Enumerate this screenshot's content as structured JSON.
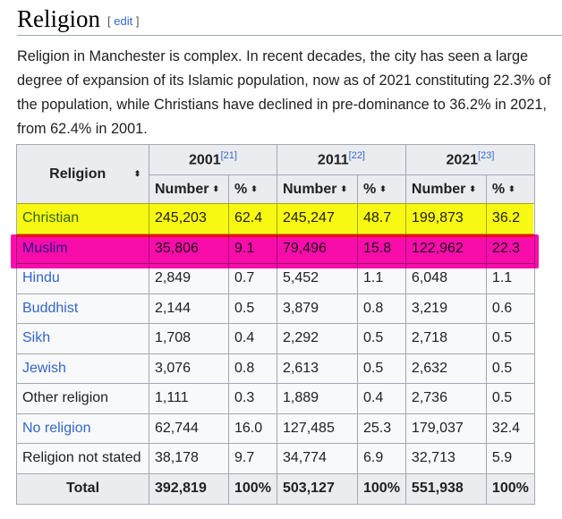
{
  "section": {
    "heading": "Religion",
    "edit_open": "[",
    "edit_link": "edit",
    "edit_close": "]"
  },
  "intro": "Religion in Manchester is complex. In recent decades, the city has seen a large degree of expansion of its Islamic population, now as of 2021 constituting 22.3% of the population, while Christians have declined in pre-dominance to 36.2% in 2021, from 62.4% in 2001.",
  "table": {
    "religion_header": "Religion",
    "years": [
      {
        "year": "2001",
        "ref": "[21]"
      },
      {
        "year": "2011",
        "ref": "[22]"
      },
      {
        "year": "2021",
        "ref": "[23]"
      }
    ],
    "number_header": "Number",
    "percent_header": "%",
    "sort_icon": "⬍",
    "rows": [
      {
        "religion": "Christian",
        "link": true,
        "values": [
          "245,203",
          "62.4",
          "245,247",
          "48.7",
          "199,873",
          "36.2"
        ]
      },
      {
        "religion": "Muslim",
        "link": true,
        "values": [
          "35,806",
          "9.1",
          "79,496",
          "15.8",
          "122,962",
          "22.3"
        ]
      },
      {
        "religion": "Hindu",
        "link": true,
        "values": [
          "2,849",
          "0.7",
          "5,452",
          "1.1",
          "6,048",
          "1.1"
        ]
      },
      {
        "religion": "Buddhist",
        "link": true,
        "values": [
          "2,144",
          "0.5",
          "3,879",
          "0.8",
          "3,219",
          "0.6"
        ]
      },
      {
        "religion": "Sikh",
        "link": true,
        "values": [
          "1,708",
          "0.4",
          "2,292",
          "0.5",
          "2,718",
          "0.5"
        ]
      },
      {
        "religion": "Jewish",
        "link": true,
        "values": [
          "3,076",
          "0.8",
          "2,613",
          "0.5",
          "2,632",
          "0.5"
        ]
      },
      {
        "religion": "Other religion",
        "link": false,
        "values": [
          "1,111",
          "0.3",
          "1,889",
          "0.4",
          "2,736",
          "0.5"
        ]
      },
      {
        "religion": "No religion",
        "link": true,
        "values": [
          "62,744",
          "16.0",
          "127,485",
          "25.3",
          "179,037",
          "32.4"
        ]
      },
      {
        "religion": "Religion not stated",
        "link": false,
        "values": [
          "38,178",
          "9.7",
          "34,774",
          "6.9",
          "32,713",
          "5.9"
        ]
      }
    ],
    "total": {
      "label": "Total",
      "values": [
        "392,819",
        "100%",
        "503,127",
        "100%",
        "551,938",
        "100%"
      ]
    }
  },
  "highlights": [
    {
      "row": "Christian",
      "color": "#ffff00"
    },
    {
      "row": "Muslim",
      "color": "#ff00aa"
    }
  ],
  "colors": {
    "link": "#3366cc",
    "header_bg": "#eaecf0",
    "cell_bg": "#f8f9fa",
    "border": "#a2a9b1"
  }
}
